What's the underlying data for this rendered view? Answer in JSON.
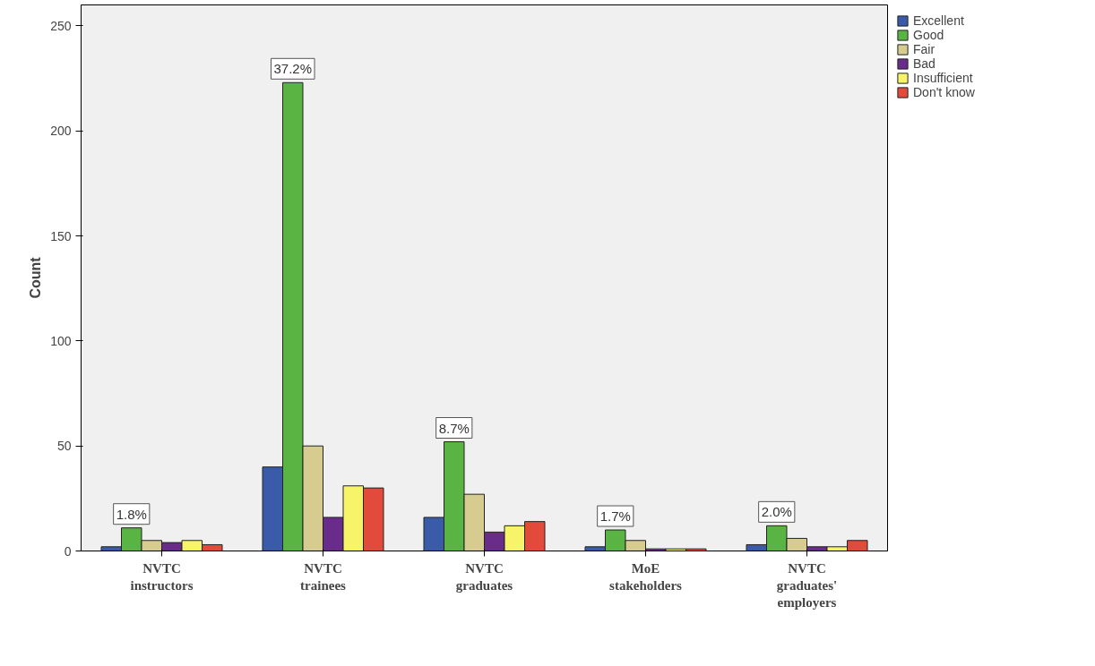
{
  "chart_data": {
    "type": "bar",
    "ylabel": "Count",
    "categories": [
      "NVTC\ninstructors",
      "NVTC\ntrainees",
      "NVTC\ngraduates",
      "MoE\nstakeholders",
      "NVTC\ngraduates'\nemployers"
    ],
    "series": [
      {
        "name": "Excellent",
        "color": "#3a5ba8",
        "values": [
          2,
          40,
          16,
          2,
          3
        ]
      },
      {
        "name": "Good",
        "color": "#5ab443",
        "values": [
          11,
          223,
          52,
          10,
          12
        ]
      },
      {
        "name": "Fair",
        "color": "#d6cc8f",
        "values": [
          5,
          50,
          27,
          5,
          6
        ]
      },
      {
        "name": "Bad",
        "color": "#6a2c8a",
        "values": [
          4,
          16,
          9,
          1,
          2
        ]
      },
      {
        "name": "Insufficient",
        "color": "#f8f46a",
        "values": [
          5,
          31,
          12,
          1,
          2
        ]
      },
      {
        "name": "Don't know",
        "color": "#e24a3b",
        "values": [
          3,
          30,
          14,
          1,
          5
        ]
      }
    ],
    "annotations": [
      "1.8%",
      "37.2%",
      "8.7%",
      "1.7%",
      "2.0%"
    ],
    "ylim": [
      0,
      260
    ],
    "yticks": [
      0,
      50,
      100,
      150,
      200,
      250
    ],
    "grid": false,
    "legend": "right"
  }
}
